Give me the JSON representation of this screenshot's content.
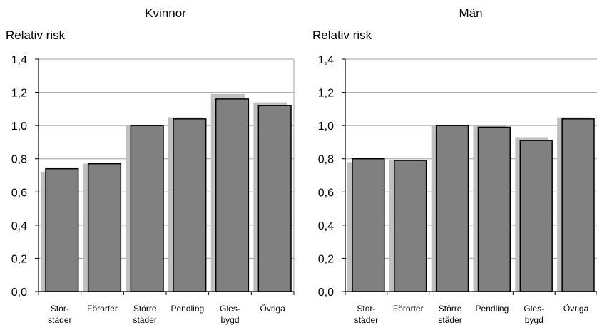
{
  "chart_data": [
    {
      "type": "bar",
      "title": "Kvinnor",
      "ylabel": "Relativ risk",
      "xlabel": "",
      "ylim": [
        0,
        1.4
      ],
      "yticks": [
        "0,0",
        "0,2",
        "0,4",
        "0,6",
        "0,8",
        "1,0",
        "1,2",
        "1,4"
      ],
      "grid": true,
      "categories": [
        [
          "Stor-",
          "städer"
        ],
        [
          "Förorter"
        ],
        [
          "Större",
          "städer"
        ],
        [
          "Pendling"
        ],
        [
          "Gles-",
          "bygd"
        ],
        [
          "Övriga"
        ]
      ],
      "series": [
        {
          "color": "#c0c0c0",
          "values": [
            0.72,
            0.77,
            1.0,
            1.05,
            1.19,
            1.14
          ]
        },
        {
          "color": "#808080",
          "values": [
            0.74,
            0.77,
            1.0,
            1.04,
            1.16,
            1.12
          ]
        }
      ]
    },
    {
      "type": "bar",
      "title": "Män",
      "ylabel": "Relativ risk",
      "xlabel": "",
      "ylim": [
        0,
        1.4
      ],
      "yticks": [
        "0,0",
        "0,2",
        "0,4",
        "0,6",
        "0,8",
        "1,0",
        "1,2",
        "1,4"
      ],
      "grid": true,
      "categories": [
        [
          "Stor-",
          "städer"
        ],
        [
          "Förorter"
        ],
        [
          "Större",
          "städer"
        ],
        [
          "Pendling"
        ],
        [
          "Gles-",
          "bygd"
        ],
        [
          "Övriga"
        ]
      ],
      "series": [
        {
          "color": "#c0c0c0",
          "values": [
            0.78,
            0.79,
            1.0,
            1.0,
            0.93,
            1.05
          ]
        },
        {
          "color": "#808080",
          "values": [
            0.8,
            0.79,
            1.0,
            0.99,
            0.91,
            1.04
          ]
        }
      ]
    }
  ]
}
